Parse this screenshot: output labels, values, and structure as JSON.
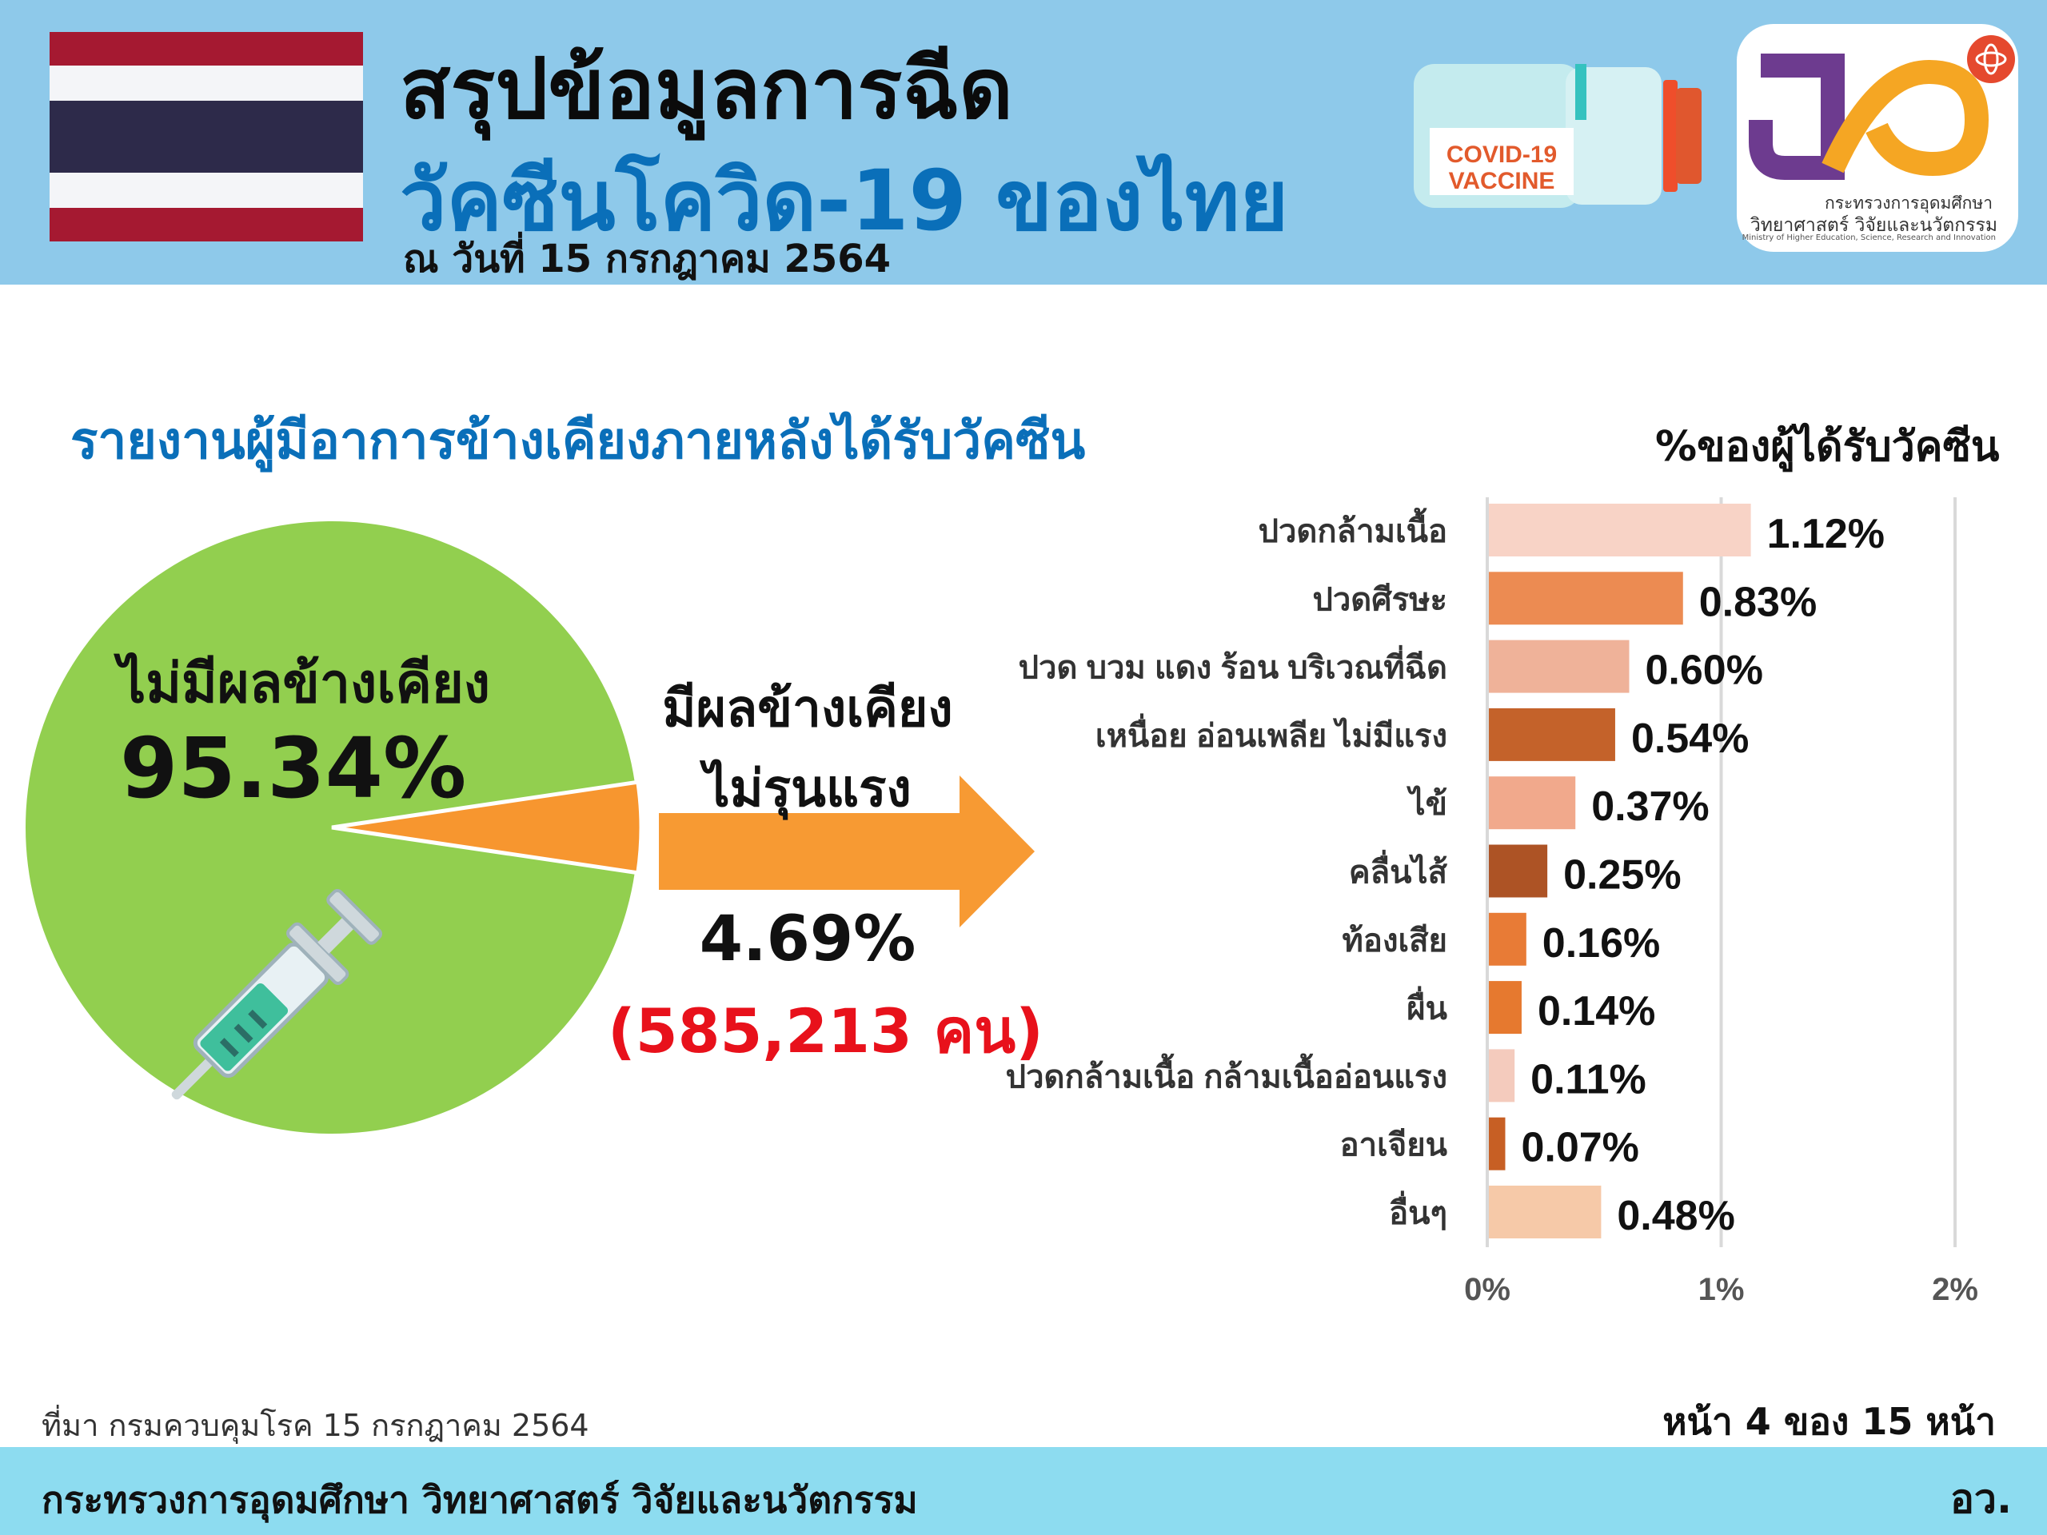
{
  "header": {
    "title_line1": "สรุปข้อมูลการฉีด",
    "title_line2": "วัคซีนโควิด-19 ของไทย",
    "date": "ณ วันที่ 15 กรกฎาคม 2564",
    "vaccine_label_line1": "COVID-19",
    "vaccine_label_line2": "VACCINE",
    "logo_text_line1": "กระทรวงการอุดมศึกษา",
    "logo_text_line2": "วิทยาศาสตร์ วิจัยและนวัตกรรม",
    "logo_text_line3": "Ministry of Higher Education, Science, Research and Innovation"
  },
  "colors": {
    "header_bg": "#8ec9ea",
    "title_blue": "#0a6fb9",
    "pie_green": "#92cf4f",
    "pie_orange": "#f7962f",
    "arrow_orange": "#f79a33",
    "highlight_red": "#e8111b",
    "footer_bg": "#8ddcf0",
    "flag_red": "#a51931",
    "flag_white": "#f4f5f8",
    "flag_blue": "#2d2a4a"
  },
  "section_title": "รายงานผู้มีอาการข้างเคียงภายหลังได้รับวัคซีน",
  "pie": {
    "no_effect_label": "ไม่มีผลข้างเคียง",
    "no_effect_value": "95.34%",
    "mild_label_line1": "มีผลข้างเคียง",
    "mild_label_line2": "ไม่รุนแรง",
    "mild_value": "4.69%",
    "mild_count": "(585,213 คน)"
  },
  "chart_data": [
    {
      "type": "pie",
      "categories": [
        "ไม่มีผลข้างเคียง",
        "มีผลข้างเคียง ไม่รุนแรง"
      ],
      "values": [
        95.34,
        4.69
      ]
    },
    {
      "type": "bar",
      "title": "%ของผู้ได้รับวัคซีน",
      "orientation": "horizontal",
      "categories": [
        "ปวดกล้ามเนื้อ",
        "ปวดศีรษะ",
        "ปวด บวม แดง ร้อน บริเวณที่ฉีด",
        "เหนื่อย อ่อนเพลีย ไม่มีแรง",
        "ไข้",
        "คลื่นไส้",
        "ท้องเสีย",
        "ผื่น",
        "ปวดกล้ามเนื้อ กล้ามเนื้ออ่อนแรง",
        "อาเจียน",
        "อื่นๆ"
      ],
      "values": [
        1.12,
        0.83,
        0.6,
        0.54,
        0.37,
        0.25,
        0.16,
        0.14,
        0.11,
        0.07,
        0.48
      ],
      "value_labels": [
        "1.12%",
        "0.83%",
        "0.60%",
        "0.54%",
        "0.37%",
        "0.25%",
        "0.16%",
        "0.14%",
        "0.11%",
        "0.07%",
        "0.48%"
      ],
      "bar_colors": [
        "#f8d3c6",
        "#ec8b52",
        "#efb299",
        "#c4622a",
        "#f1a98c",
        "#ad5325",
        "#e87b36",
        "#e6792f",
        "#f4cbbd",
        "#c75f24",
        "#f6c9a8"
      ],
      "xlim": [
        0,
        2
      ],
      "xticks": [
        "0%",
        "1%",
        "2%"
      ],
      "grid": true
    }
  ],
  "footer": {
    "source": "ที่มา กรมควบคุมโรค 15 กรกฎาคม 2564",
    "page": "หน้า 4 ของ 15 หน้า",
    "ministry": "กระทรวงการอุดมศึกษา วิทยาศาสตร์ วิจัยและนวัตกรรม",
    "abbr": "อว."
  }
}
